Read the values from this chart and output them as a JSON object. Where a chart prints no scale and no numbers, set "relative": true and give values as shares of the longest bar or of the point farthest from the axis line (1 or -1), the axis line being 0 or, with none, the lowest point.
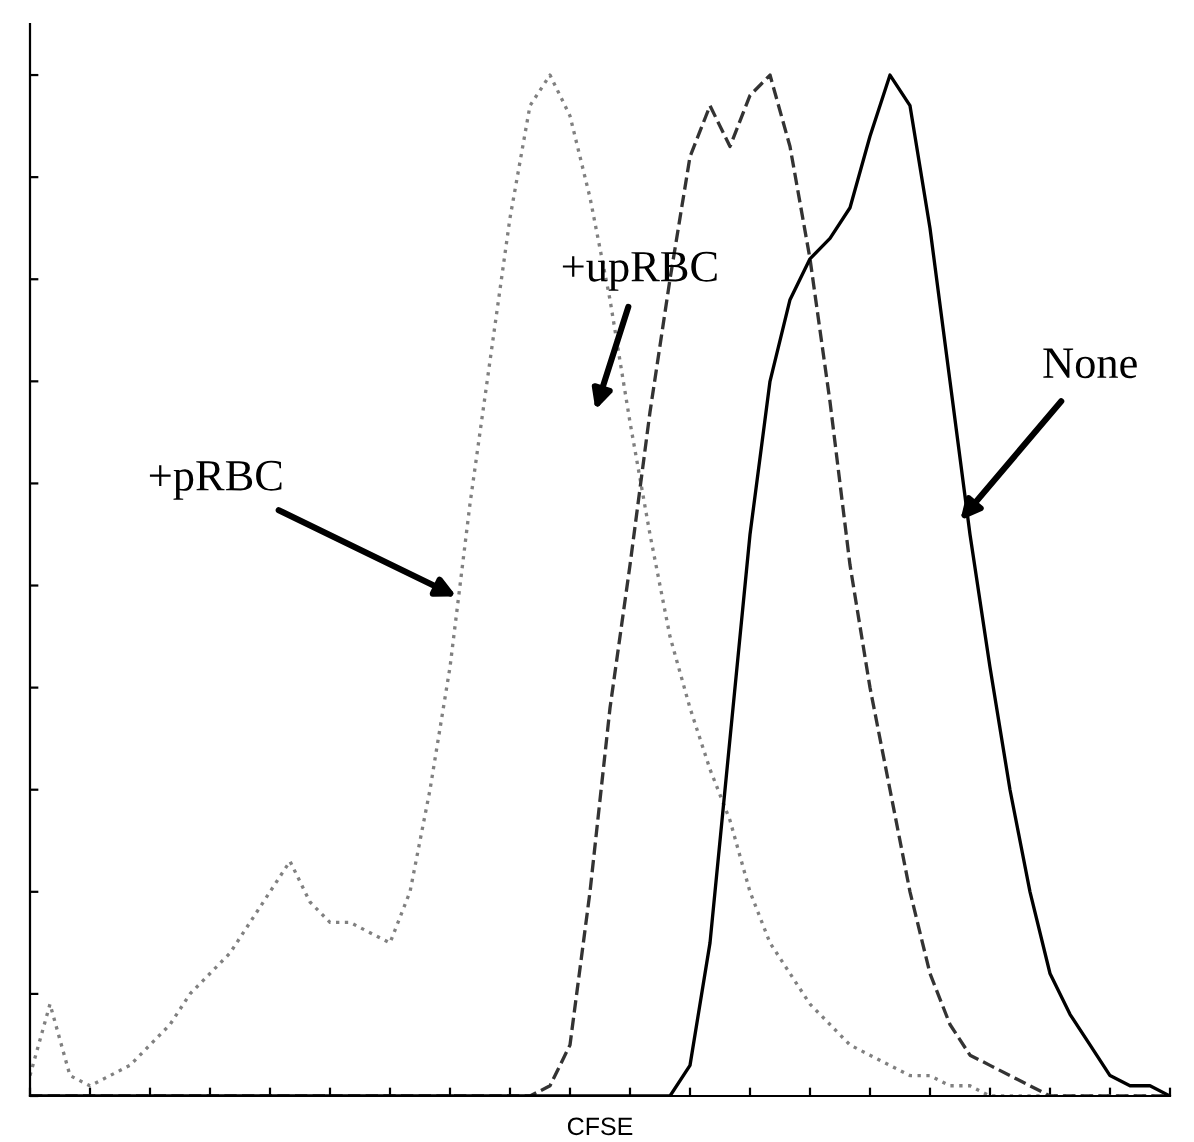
{
  "chart_data": {
    "type": "line",
    "relative": true,
    "xlabel": "CFSE",
    "grid": false,
    "categories": [
      null,
      null,
      null,
      null,
      null,
      null,
      null,
      null,
      null,
      null,
      null,
      null,
      null,
      null,
      null,
      null,
      null,
      null,
      null,
      null,
      null,
      null,
      null,
      null,
      null,
      null,
      null,
      null,
      null,
      null,
      null,
      null,
      null,
      null,
      null,
      null,
      null,
      null,
      null,
      null,
      null,
      null,
      null,
      null,
      null,
      null,
      null,
      null,
      null,
      null,
      null,
      null,
      null,
      null,
      null,
      null,
      null,
      null
    ],
    "series": [
      {
        "color": "#808080",
        "line_style": "dotted",
        "values": [
          0.02,
          0.09,
          0.02,
          0.01,
          0.02,
          0.03,
          0.05,
          0.07,
          0.1,
          0.12,
          0.14,
          0.17,
          0.2,
          0.23,
          0.19,
          0.17,
          0.17,
          0.16,
          0.15,
          0.2,
          0.3,
          0.42,
          0.58,
          0.72,
          0.86,
          0.97,
          1.0,
          0.96,
          0.88,
          0.78,
          0.66,
          0.55,
          0.45,
          0.38,
          0.32,
          0.27,
          0.2,
          0.15,
          0.12,
          0.09,
          0.07,
          0.05,
          0.04,
          0.03,
          0.02,
          0.02,
          0.01,
          0.01,
          0,
          0,
          0,
          0,
          0,
          0,
          0,
          0,
          0,
          0
        ]
      },
      {
        "color": "#333333",
        "line_style": "dashed",
        "values": [
          0,
          0,
          0,
          0,
          0,
          0,
          0,
          0,
          0,
          0,
          0,
          0,
          0,
          0,
          0,
          0,
          0,
          0,
          0,
          0,
          0,
          0,
          0,
          0,
          0,
          0,
          0.01,
          0.05,
          0.2,
          0.38,
          0.52,
          0.67,
          0.8,
          0.92,
          0.97,
          0.93,
          0.98,
          1.0,
          0.93,
          0.82,
          0.68,
          0.52,
          0.4,
          0.3,
          0.2,
          0.12,
          0.07,
          0.04,
          0.03,
          0.02,
          0.01,
          0,
          0,
          0,
          0,
          0,
          0,
          0
        ]
      },
      {
        "color": "#000000",
        "line_style": "solid",
        "values": [
          0,
          0,
          0,
          0,
          0,
          0,
          0,
          0,
          0,
          0,
          0,
          0,
          0,
          0,
          0,
          0,
          0,
          0,
          0,
          0,
          0,
          0,
          0,
          0,
          0,
          0,
          0,
          0,
          0,
          0,
          0,
          0,
          0,
          0.03,
          0.15,
          0.35,
          0.55,
          0.7,
          0.78,
          0.82,
          0.84,
          0.87,
          0.94,
          1.0,
          0.97,
          0.85,
          0.7,
          0.55,
          0.42,
          0.3,
          0.2,
          0.12,
          0.08,
          0.05,
          0.02,
          0.01,
          0.01,
          0
        ]
      }
    ],
    "annotations": [
      "+upRBC",
      "+pRBC",
      "None"
    ]
  }
}
